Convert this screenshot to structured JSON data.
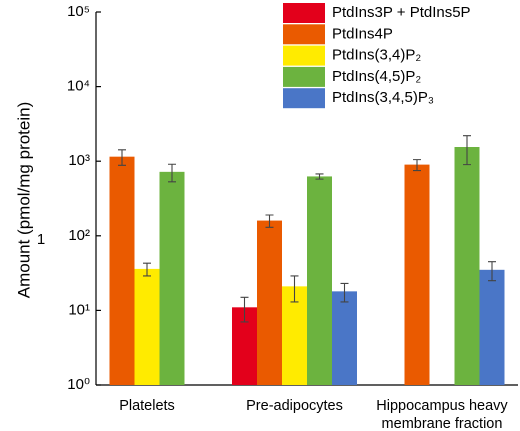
{
  "chart_data": {
    "type": "bar",
    "y_label": "Amount (pmol/mg protein)",
    "annotation": "1",
    "categories": [
      "Platelets",
      "Pre-adipocytes",
      "Hippocampus heavy membrane fraction"
    ],
    "log_y": true,
    "ylim": [
      1,
      100000
    ],
    "yticks": [
      {
        "value": 1,
        "label": "10⁰"
      },
      {
        "value": 10,
        "label": "10¹"
      },
      {
        "value": 100,
        "label": "10²"
      },
      {
        "value": 1000,
        "label": "10³"
      },
      {
        "value": 10000,
        "label": "10⁴"
      },
      {
        "value": 100000,
        "label": "10⁵"
      }
    ],
    "legend": "upper right",
    "series": [
      {
        "name": "PtdIns3P + PtdIns5P",
        "color": "#e3001b",
        "values": [
          null,
          11,
          null
        ],
        "errors": [
          null,
          4,
          null
        ]
      },
      {
        "name": "PtdIns4P",
        "color": "#ea5a00",
        "values": [
          1150,
          160,
          900
        ],
        "errors": [
          270,
          30,
          150
        ]
      },
      {
        "name": "PtdIns(3,4)P₂",
        "color": "#ffeb00",
        "values": [
          36,
          21,
          null
        ],
        "errors": [
          7,
          8,
          null
        ]
      },
      {
        "name": "PtdIns(4,5)P₂",
        "color": "#6cb33f",
        "values": [
          720,
          625,
          1550
        ],
        "errors": [
          190,
          50,
          650
        ]
      },
      {
        "name": "PtdIns(3,4,5)P₃",
        "color": "#4a76c7",
        "values": [
          null,
          18,
          35
        ],
        "errors": [
          null,
          5,
          10
        ]
      }
    ]
  }
}
